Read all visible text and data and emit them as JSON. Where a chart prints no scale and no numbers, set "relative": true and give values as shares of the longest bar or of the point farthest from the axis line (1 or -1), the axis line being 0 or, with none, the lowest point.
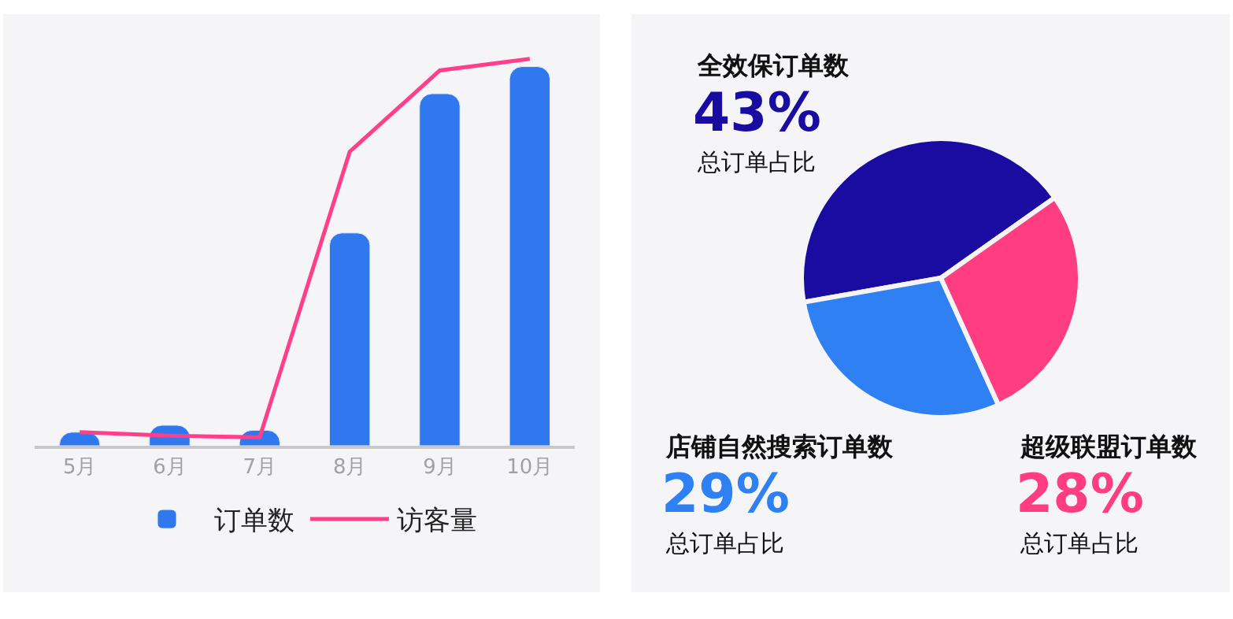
{
  "chart_data": [
    {
      "type": "bar",
      "relative": true,
      "categories": [
        "5月",
        "6月",
        "7月",
        "8月",
        "9月",
        "10月"
      ],
      "legend": "bottom",
      "grid": false,
      "series": [
        {
          "name": "订单数",
          "type": "bar",
          "color": "#2f78ee",
          "values": [
            0.035,
            0.053,
            0.04,
            0.55,
            0.91,
            0.98
          ]
        },
        {
          "name": "访客量",
          "type": "line",
          "color": "#ff3f8a",
          "marker": "none",
          "values": [
            0.035,
            0.026,
            0.022,
            0.76,
            0.97,
            1
          ]
        }
      ]
    },
    {
      "type": "pie",
      "categories": [
        "全效保订单数",
        "店铺自然搜索订单数",
        "超级联盟订单数"
      ],
      "values": [
        43,
        29,
        28
      ],
      "colors": [
        "#1a0ca0",
        "#2f80f2",
        "#ff3d80"
      ],
      "value_labels": [
        "43%",
        "29%",
        "28%"
      ],
      "annotations": [
        "总订单占比",
        "总订单占比",
        "总订单占比"
      ]
    }
  ]
}
